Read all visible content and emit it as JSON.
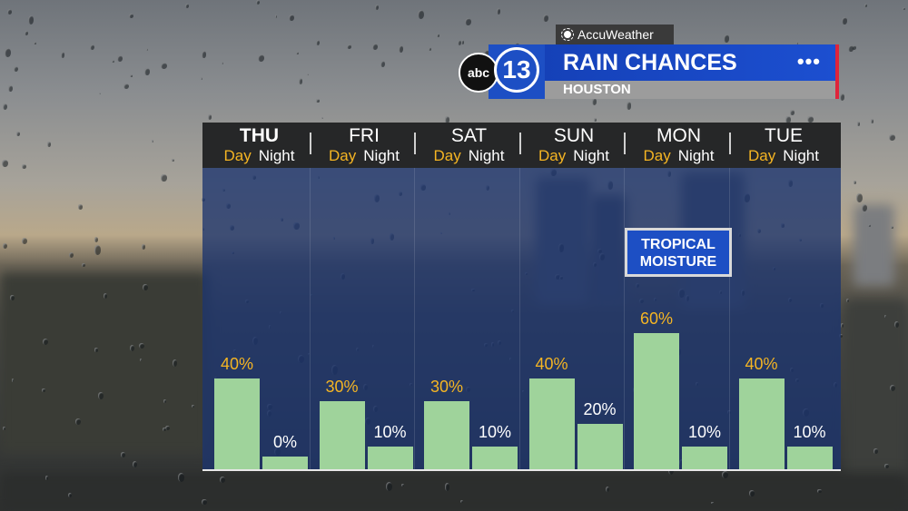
{
  "header": {
    "sponsor": "AccuWeather",
    "logo_abc": "abc",
    "logo_number": "13",
    "title": "RAIN CHANCES",
    "location": "HOUSTON",
    "menu_icon": "•••"
  },
  "colors": {
    "brand_blue": "#1d4fc4",
    "accent_red": "#e0243a",
    "day_label": "#f5b523",
    "bar_fill": "#9fd39b"
  },
  "annotation": "TROPICAL\nMOISTURE",
  "chart_data": {
    "type": "bar",
    "categories": [
      "THU",
      "FRI",
      "SAT",
      "SUN",
      "MON",
      "TUE"
    ],
    "sub_labels": {
      "day": "Day",
      "night": "Night"
    },
    "series": [
      {
        "name": "Day",
        "values": [
          40,
          30,
          30,
          40,
          60,
          40
        ]
      },
      {
        "name": "Night",
        "values": [
          0,
          10,
          10,
          20,
          10,
          10
        ]
      }
    ],
    "value_labels": {
      "day": [
        "40%",
        "30%",
        "30%",
        "40%",
        "60%",
        "40%"
      ],
      "night": [
        "0%",
        "10%",
        "10%",
        "20%",
        "10%",
        "10%"
      ]
    },
    "ylim": [
      0,
      100
    ],
    "grid": false,
    "legend": "none",
    "unit": "%"
  }
}
